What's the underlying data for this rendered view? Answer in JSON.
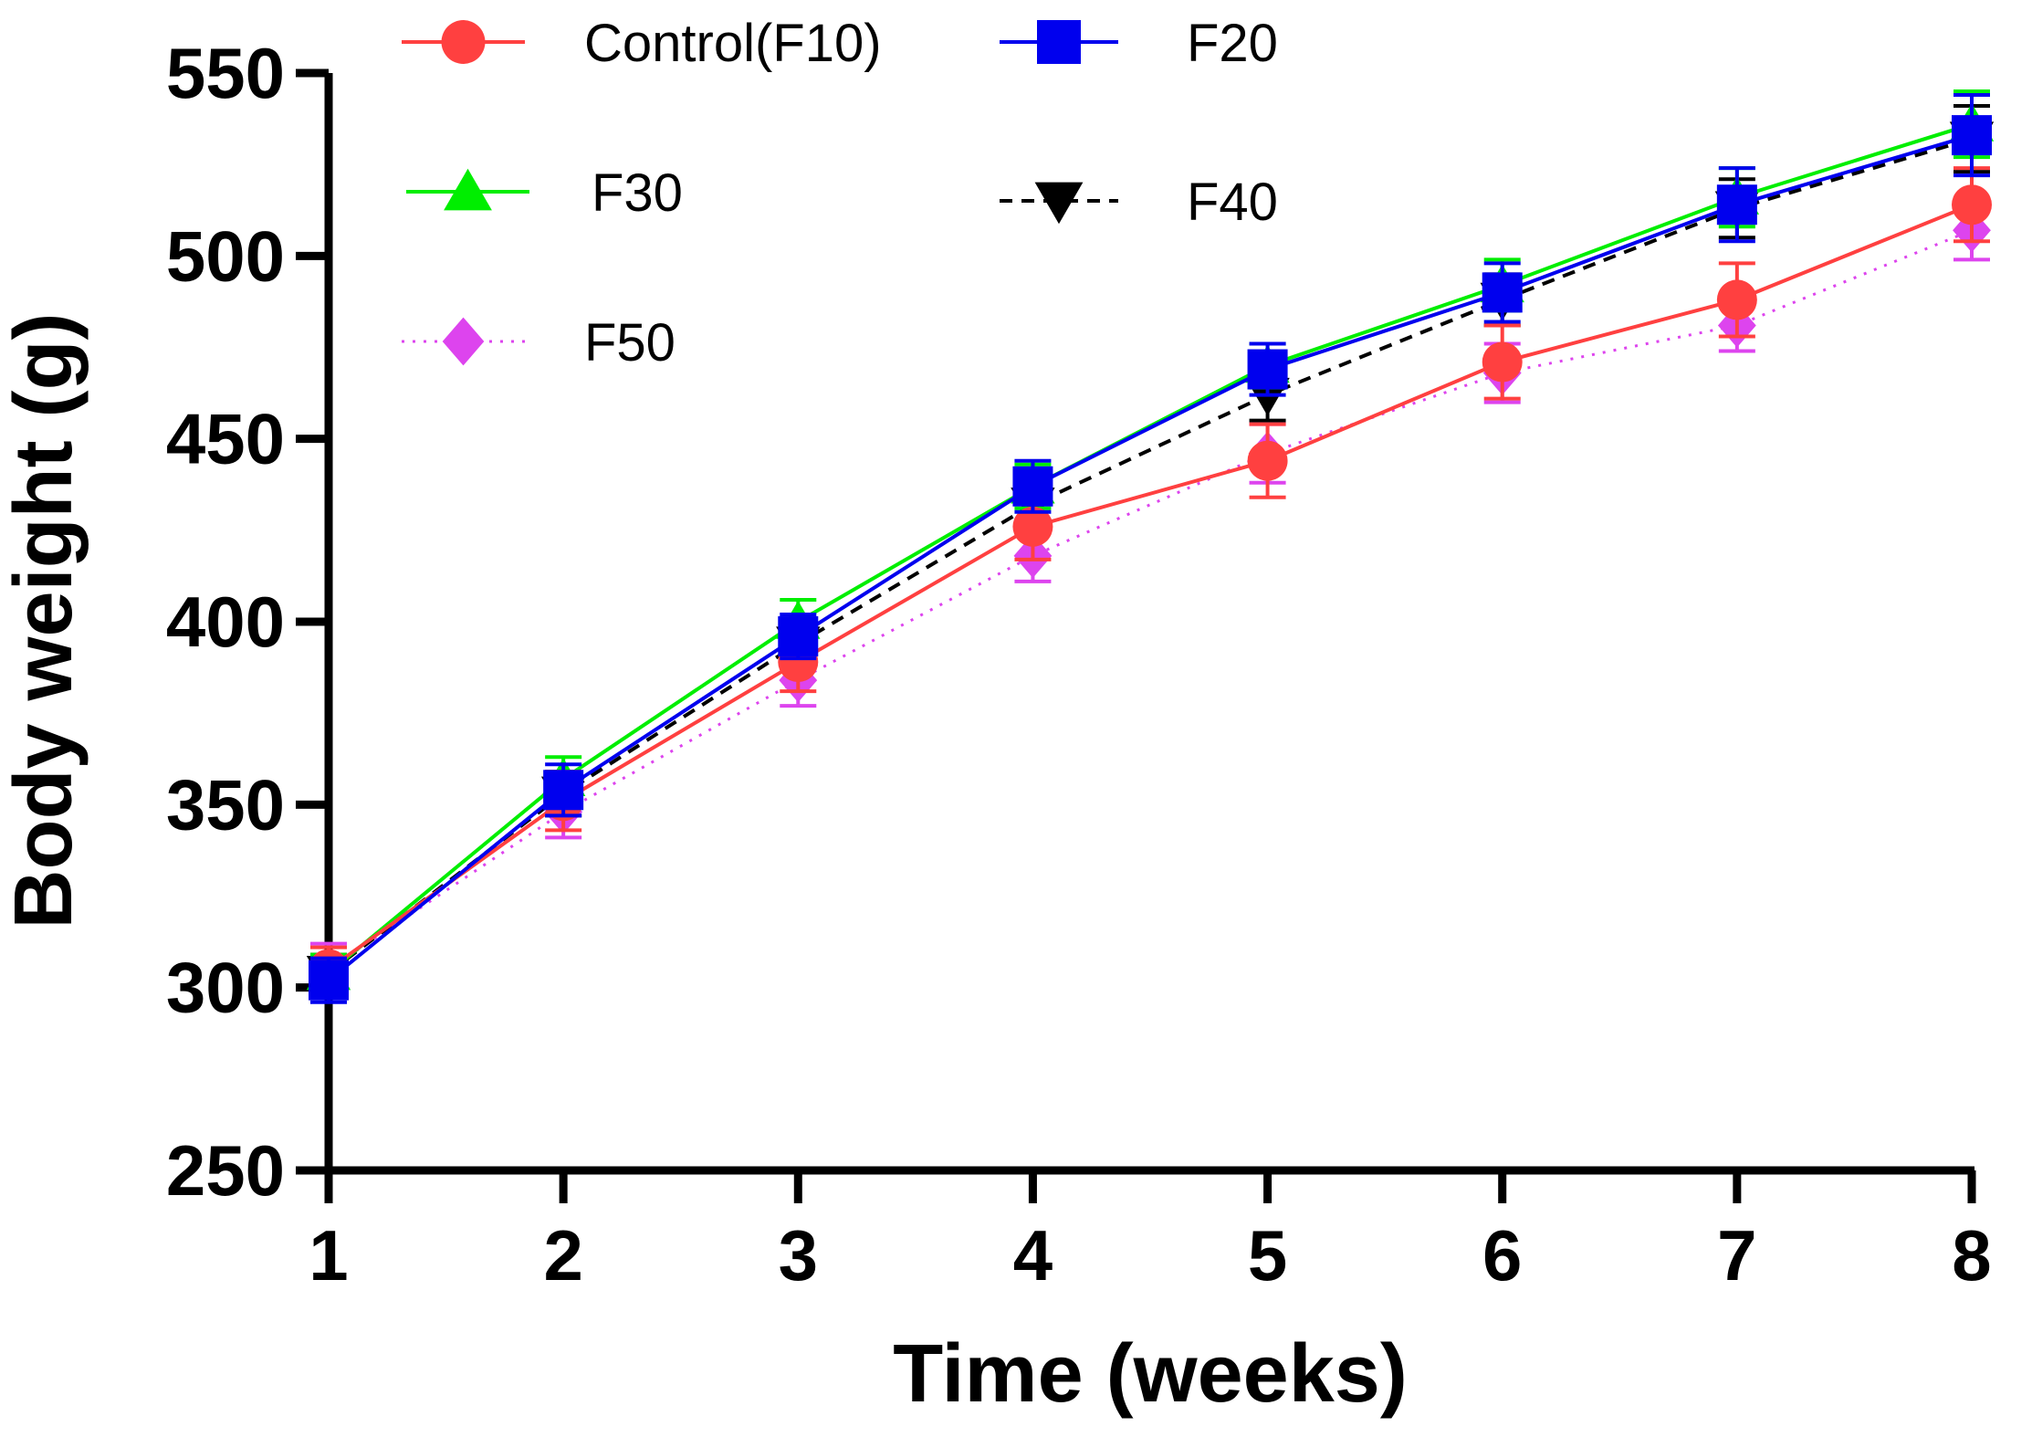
{
  "chart_data": {
    "type": "line",
    "title": "",
    "xlabel": "Time (weeks)",
    "ylabel": "Body weight (g)",
    "x": [
      1,
      2,
      3,
      4,
      5,
      6,
      7,
      8
    ],
    "xticks": [
      "1",
      "2",
      "3",
      "4",
      "5",
      "6",
      "7",
      "8"
    ],
    "ylim": [
      250,
      550
    ],
    "yticks": [
      "250",
      "300",
      "350",
      "400",
      "450",
      "500",
      "550"
    ],
    "legend_position": "top",
    "series": [
      {
        "name": "Control(F10)",
        "marker": "circle",
        "line": "solid",
        "color": "#ff4040",
        "values": [
          305,
          351,
          389,
          426,
          444,
          471,
          488,
          514
        ],
        "errors": [
          6,
          8,
          8,
          9,
          10,
          10,
          10,
          10
        ]
      },
      {
        "name": "F20",
        "marker": "square",
        "line": "solid",
        "color": "#0000ee",
        "values": [
          302,
          354,
          396,
          437,
          469,
          490,
          514,
          533
        ],
        "errors": [
          6,
          7,
          6,
          7,
          7,
          8,
          10,
          11
        ]
      },
      {
        "name": "F30",
        "marker": "triangle-up",
        "line": "solid",
        "color": "#00ee00",
        "values": [
          304,
          357,
          400,
          437,
          470,
          492,
          516,
          536
        ],
        "errors": [
          5,
          6,
          6,
          6,
          6,
          7,
          8,
          9
        ]
      },
      {
        "name": "F40",
        "marker": "triangle-down",
        "line": "dashed",
        "color": "#000000",
        "values": [
          304,
          353,
          394,
          432,
          462,
          488,
          513,
          532
        ],
        "errors": [
          5,
          6,
          6,
          6,
          7,
          7,
          8,
          9
        ]
      },
      {
        "name": "F50",
        "marker": "diamond",
        "line": "dotted",
        "color": "#dd44ee",
        "values": [
          305,
          348,
          384,
          418,
          446,
          468,
          481,
          507
        ],
        "errors": [
          7,
          7,
          7,
          7,
          8,
          8,
          7,
          8
        ]
      }
    ]
  }
}
